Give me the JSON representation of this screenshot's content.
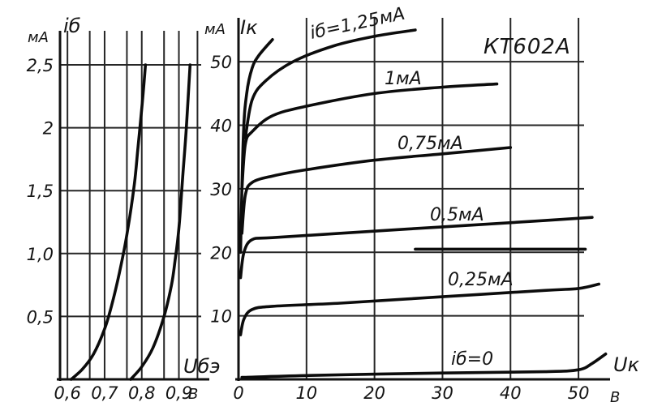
{
  "chart_data": [
    {
      "type": "line",
      "id": "input",
      "title": "",
      "xlabel": "Uбэ",
      "x_unit": "В",
      "ylabel": "iб",
      "y_unit": "мА",
      "xlim": [
        0.58,
        0.96
      ],
      "ylim": [
        0,
        2.5
      ],
      "x_ticks": [
        0.6,
        0.7,
        0.8,
        0.9
      ],
      "x_tick_labels": [
        "0,6",
        "0,7",
        "0,8",
        "0,9"
      ],
      "y_ticks": [
        0.5,
        1.0,
        1.5,
        2,
        2.5
      ],
      "y_tick_labels": [
        "0,5",
        "1,0",
        "1,5",
        "2",
        "2,5"
      ],
      "grid": true,
      "series": [
        {
          "x": [
            0.61,
            0.64,
            0.67,
            0.7,
            0.72,
            0.74,
            0.76,
            0.78,
            0.79,
            0.8,
            0.81
          ],
          "y": [
            0.0,
            0.08,
            0.2,
            0.4,
            0.6,
            0.85,
            1.15,
            1.55,
            1.85,
            2.15,
            2.5
          ]
        },
        {
          "x": [
            0.77,
            0.8,
            0.83,
            0.86,
            0.88,
            0.89,
            0.9,
            0.91,
            0.92,
            0.93
          ],
          "y": [
            0.0,
            0.1,
            0.25,
            0.5,
            0.75,
            0.95,
            1.2,
            1.6,
            2.0,
            2.5
          ]
        }
      ]
    },
    {
      "type": "line",
      "id": "output",
      "title": "КТ602А",
      "xlabel": "Uк",
      "x_unit": "В",
      "ylabel": "Iк",
      "y_unit": "мА",
      "xlim": [
        0,
        55
      ],
      "ylim": [
        0,
        55
      ],
      "x_ticks": [
        0,
        10,
        20,
        30,
        40,
        50
      ],
      "x_tick_labels": [
        "0",
        "10",
        "20",
        "30",
        "40",
        "50"
      ],
      "y_ticks": [
        10,
        20,
        30,
        40,
        50
      ],
      "y_tick_labels": [
        "10",
        "20",
        "30",
        "40",
        "50"
      ],
      "grid": true,
      "series": [
        {
          "name": "iб=1,25мА",
          "x": [
            0.3,
            0.7,
            1.2,
            2,
            3,
            5
          ],
          "y": [
            20,
            38,
            45,
            49,
            51,
            53.5
          ]
        },
        {
          "name": "iб=1,25мА",
          "x": [
            1,
            2,
            4,
            8,
            14,
            20,
            26
          ],
          "y": [
            38,
            44,
            47,
            50,
            52.5,
            54,
            55
          ]
        },
        {
          "name": "1мА",
          "x": [
            0.5,
            1,
            2,
            5,
            10,
            20,
            30,
            38
          ],
          "y": [
            30,
            37,
            39,
            41.5,
            43,
            45,
            46,
            46.5
          ]
        },
        {
          "name": "0,75мА",
          "x": [
            0.5,
            1,
            2,
            5,
            10,
            20,
            30,
            40
          ],
          "y": [
            23,
            29,
            31,
            32,
            33,
            34.5,
            35.5,
            36.5
          ]
        },
        {
          "name": "0,5мА",
          "x": [
            0.3,
            0.8,
            2,
            5,
            15,
            30,
            45,
            52
          ],
          "y": [
            16,
            20,
            22,
            22.3,
            23,
            24,
            25,
            25.5
          ]
        },
        {
          "name": "",
          "x": [
            26,
            40,
            51
          ],
          "y": [
            20.5,
            20.5,
            20.5
          ]
        },
        {
          "name": "0,25мА",
          "x": [
            0.3,
            0.8,
            2,
            5,
            15,
            30,
            45,
            50,
            53
          ],
          "y": [
            7,
            9.5,
            11,
            11.5,
            12,
            13,
            14,
            14.3,
            15
          ]
        },
        {
          "name": "iб=0",
          "x": [
            0.5,
            10,
            30,
            45,
            50,
            52,
            54
          ],
          "y": [
            0.3,
            0.6,
            1,
            1.2,
            1.5,
            2.5,
            4
          ]
        }
      ],
      "annotations": [
        "iб=1,25мА",
        "1мА",
        "0,75мА",
        "0,5мА",
        "0,25мА",
        "iб=0"
      ]
    }
  ]
}
